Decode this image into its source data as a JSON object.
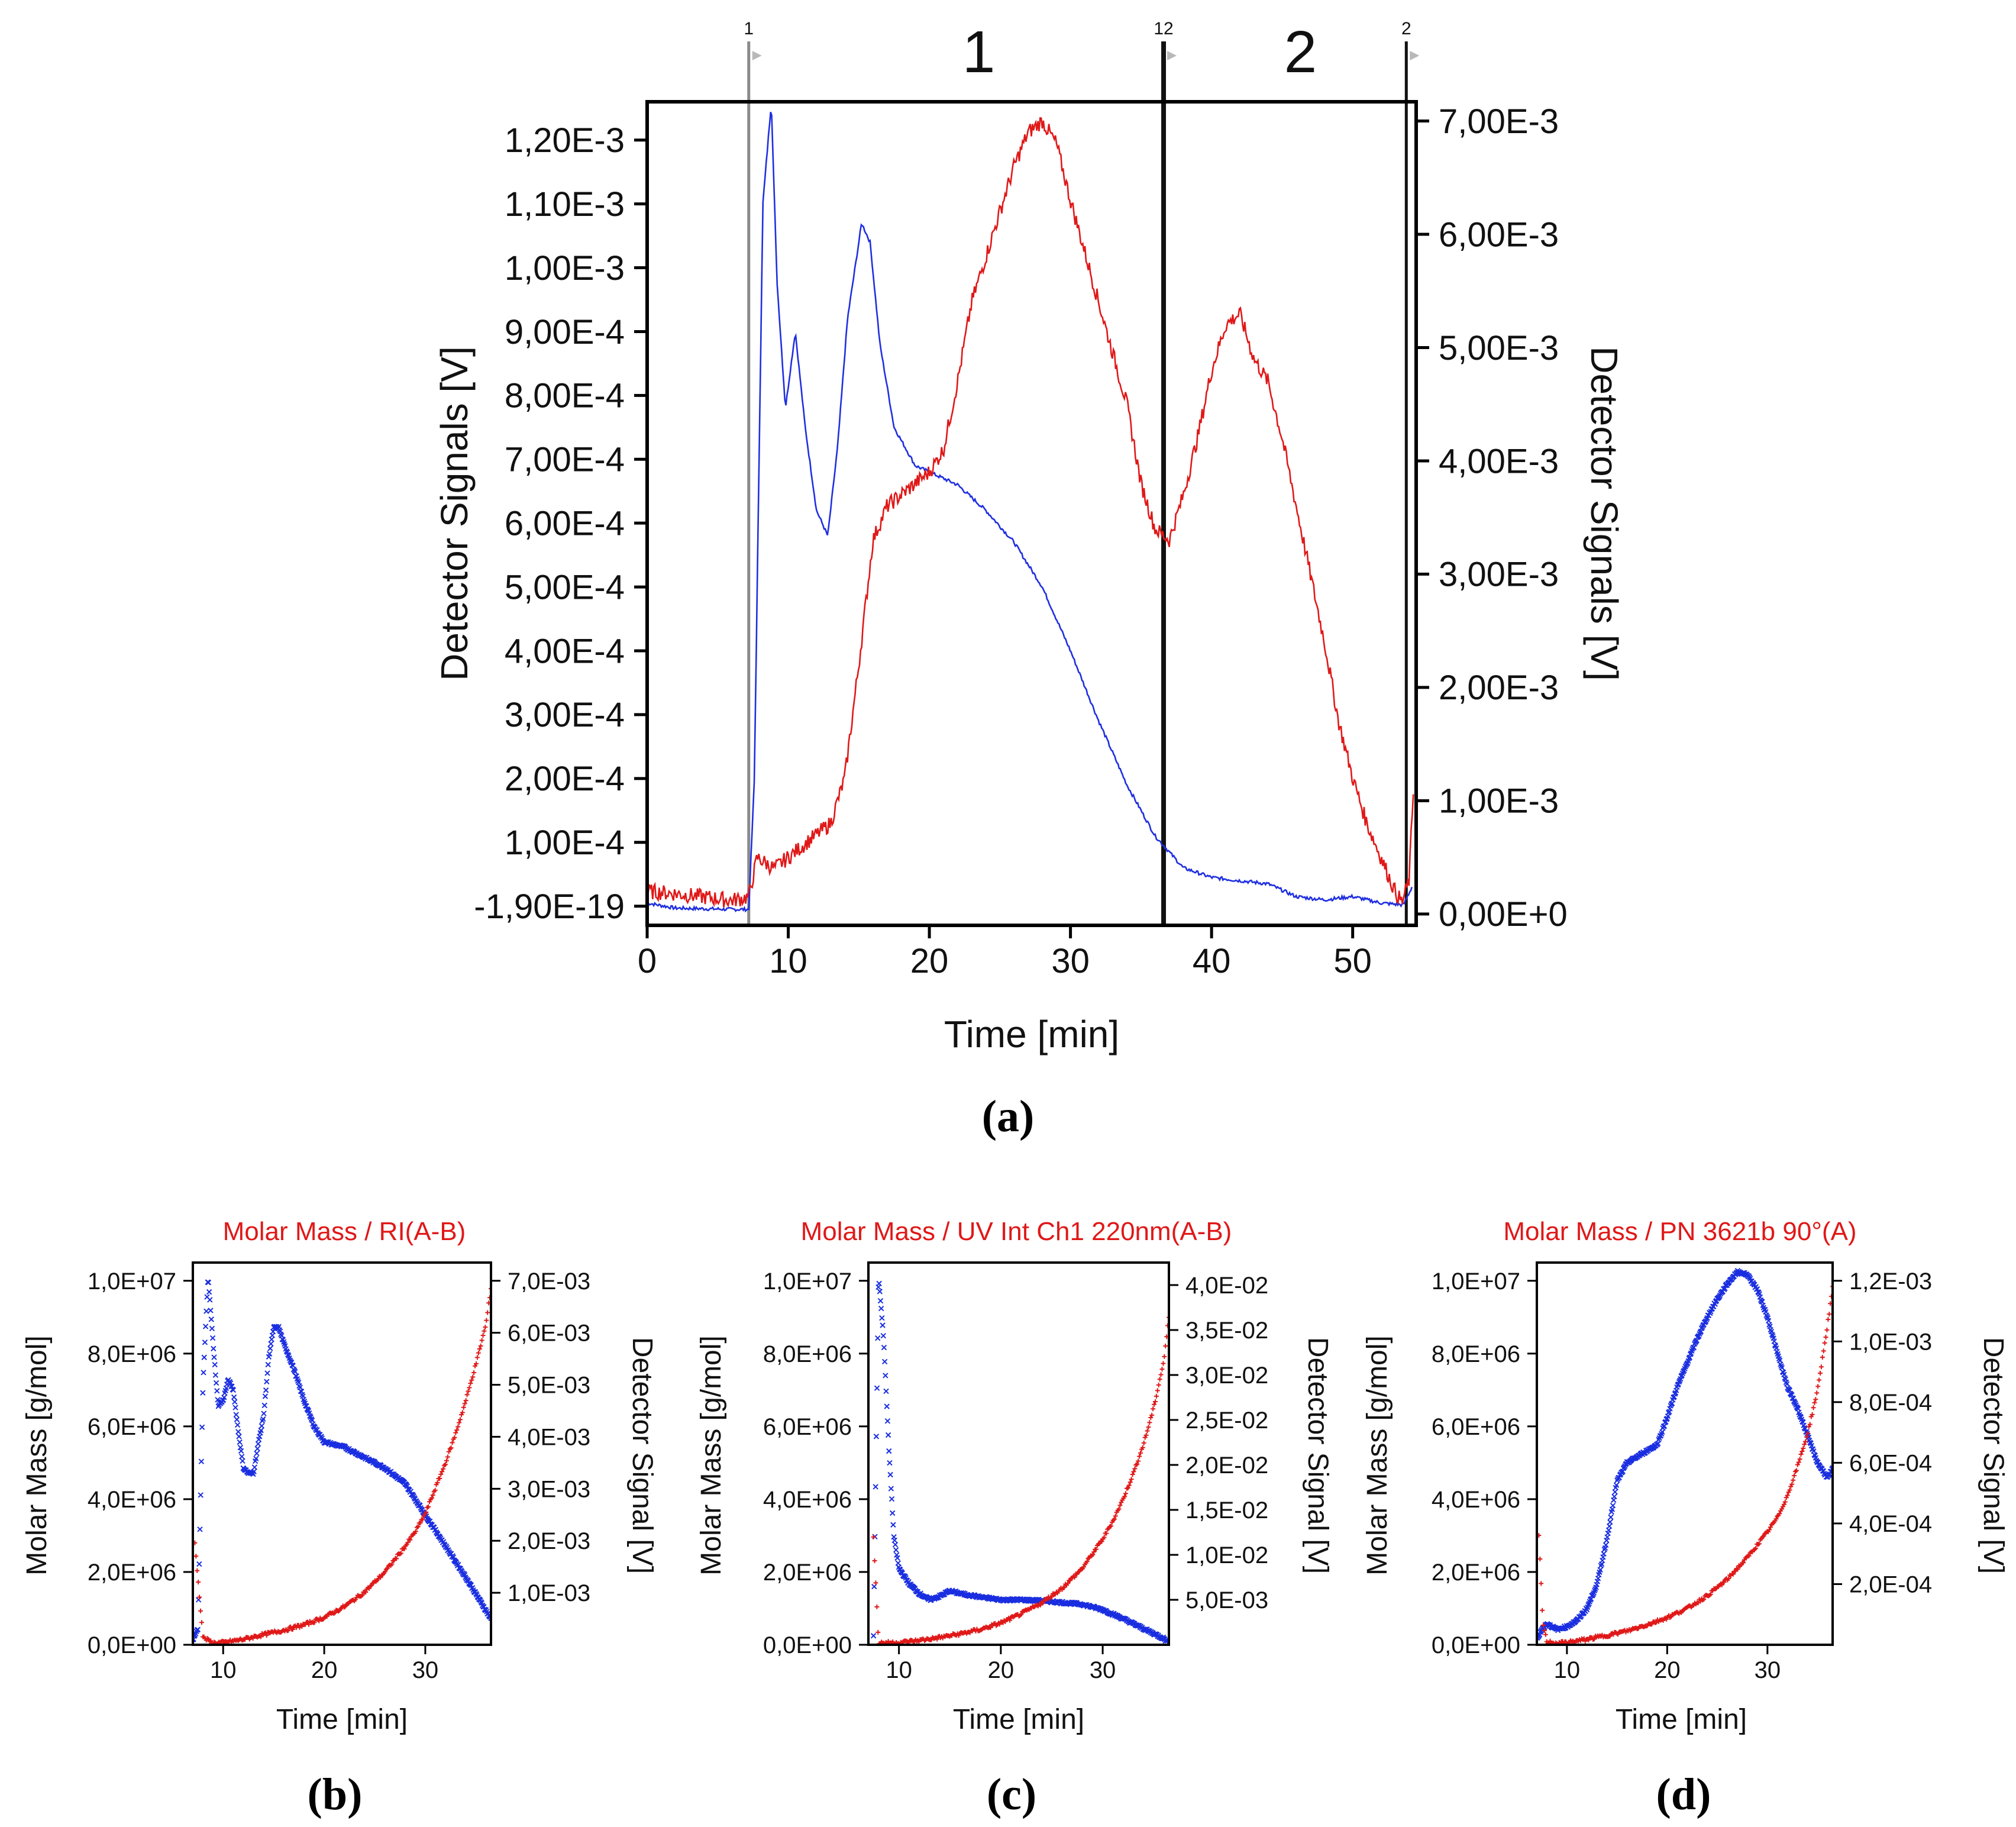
{
  "chart_data": [
    {
      "panel": "a",
      "panel_label": "(a)",
      "type": "line",
      "title": "",
      "xlabel": "Time [min]",
      "ylabel_left": "Detector Signals [V]",
      "ylabel_right": "Detector Signals [V]",
      "xlim": [
        0,
        54.5
      ],
      "ylim_left": [
        -3e-05,
        0.00126
      ],
      "ylim_right": [
        -0.0001,
        0.00717
      ],
      "x_ticks": [
        "0",
        "10",
        "20",
        "30",
        "40",
        "50"
      ],
      "y_left_ticks": [
        "-1,90E-19",
        "1,00E-4",
        "2,00E-4",
        "3,00E-4",
        "4,00E-4",
        "5,00E-4",
        "6,00E-4",
        "7,00E-4",
        "8,00E-4",
        "9,00E-4",
        "1,00E-3",
        "1,10E-3",
        "1,20E-3"
      ],
      "y_right_ticks": [
        "0,00E+0",
        "1,00E-3",
        "2,00E-3",
        "3,00E-3",
        "4,00E-3",
        "5,00E-3",
        "6,00E-3",
        "7,00E-3"
      ],
      "markers": [
        {
          "x": 7.2,
          "top_label": "1"
        },
        {
          "x": 36.6,
          "top_label": "12"
        },
        {
          "x": 53.8,
          "top_label": "2"
        }
      ],
      "region_labels": [
        {
          "x": 23.5,
          "label": "1"
        },
        {
          "x": 46.3,
          "label": "2"
        }
      ],
      "series": [
        {
          "name": "blue signal",
          "axis": "left",
          "color": "#1f2fe0",
          "x": [
            0,
            2,
            4,
            6,
            7.2,
            7.6,
            8.2,
            8.8,
            9.2,
            9.8,
            10.5,
            11.2,
            12,
            12.8,
            13.5,
            14.2,
            15.2,
            15.8,
            16.5,
            17.5,
            19,
            20,
            22,
            24,
            26,
            28,
            30,
            32,
            34,
            36,
            38,
            40,
            42,
            44,
            46,
            48,
            50,
            52,
            53.6,
            54.2
          ],
          "y": [
            5e-06,
            -3e-06,
            -4e-06,
            -5e-06,
            -5e-06,
            0.0002,
            0.0011,
            0.00126,
            0.00098,
            0.00078,
            0.0009,
            0.00075,
            0.00062,
            0.00058,
            0.00072,
            0.00092,
            0.00107,
            0.00104,
            0.00088,
            0.00075,
            0.00069,
            0.00068,
            0.00066,
            0.00062,
            0.00057,
            0.0005,
            0.0004,
            0.00029,
            0.00019,
            0.00011,
            6e-05,
            4.5e-05,
            4e-05,
            3.5e-05,
            1.5e-05,
            1e-05,
            1.5e-05,
            5e-06,
            2e-06,
            3e-05
          ]
        },
        {
          "name": "red signal",
          "axis": "right",
          "color": "#e01818",
          "x": [
            0,
            2,
            4,
            6,
            7.2,
            7.8,
            9,
            11,
            13,
            14,
            15,
            16,
            17,
            18,
            19,
            20,
            21,
            22,
            23,
            24,
            25,
            26,
            27,
            28,
            29,
            30,
            32,
            34,
            35,
            36,
            37,
            38,
            39,
            40,
            41,
            42,
            43,
            44,
            45,
            46,
            47,
            48,
            49,
            50,
            51,
            52,
            53,
            53.5,
            54,
            54.3
          ],
          "y": [
            0.0002,
            0.00018,
            0.00015,
            0.00012,
            0.00015,
            0.0005,
            0.0004,
            0.0006,
            0.0008,
            0.0012,
            0.0022,
            0.0033,
            0.0036,
            0.0037,
            0.0038,
            0.0039,
            0.0041,
            0.0047,
            0.0054,
            0.0058,
            0.0062,
            0.0066,
            0.0069,
            0.007,
            0.0068,
            0.0063,
            0.0054,
            0.0045,
            0.0038,
            0.0034,
            0.0033,
            0.0037,
            0.0042,
            0.0048,
            0.0052,
            0.0053,
            0.0049,
            0.0047,
            0.0042,
            0.0036,
            0.003,
            0.0024,
            0.0017,
            0.0012,
            0.0008,
            0.0005,
            0.0002,
            0.0001,
            0.0003,
            0.0011
          ]
        }
      ]
    },
    {
      "panel": "b",
      "panel_label": "(b)",
      "type": "scatter",
      "title": "Molar Mass / RI(A-B)",
      "xlabel": "Time [min]",
      "ylabel_left": "Molar Mass [g/mol]",
      "ylabel_right": "Detector Signal [V]",
      "xlim": [
        7,
        36.5
      ],
      "ylim_left": [
        0,
        10500000
      ],
      "ylim_right": [
        0,
        0.00735
      ],
      "x_ticks": [
        "10",
        "20",
        "30"
      ],
      "y_left_ticks": [
        "0,0E+00",
        "2,0E+06",
        "4,0E+06",
        "6,0E+06",
        "8,0E+06",
        "1,0E+07"
      ],
      "y_right_ticks": [
        "1,0E-03",
        "2,0E-03",
        "3,0E-03",
        "4,0E-03",
        "5,0E-03",
        "6,0E-03",
        "7,0E-03"
      ],
      "series": [
        {
          "name": "Detector signal",
          "axis": "right",
          "color": "#1a2ee0",
          "marker": "x",
          "x": [
            7,
            7.5,
            8,
            8.5,
            9,
            9.5,
            10,
            10.5,
            11,
            11.5,
            12,
            12.5,
            13,
            13.5,
            14,
            14.5,
            15,
            15.5,
            16,
            17,
            18,
            19,
            20,
            22,
            24,
            26,
            28,
            30,
            32,
            34,
            36.5
          ],
          "y": [
            0.0001,
            0.0003,
            0.005,
            0.0071,
            0.0058,
            0.0046,
            0.0047,
            0.0051,
            0.0049,
            0.0041,
            0.0034,
            0.0033,
            0.0033,
            0.0039,
            0.0044,
            0.0055,
            0.0061,
            0.0061,
            0.0058,
            0.0053,
            0.0047,
            0.0042,
            0.0039,
            0.0038,
            0.0036,
            0.0034,
            0.0031,
            0.0025,
            0.0019,
            0.0013,
            0.0005
          ]
        },
        {
          "name": "Molar mass",
          "axis": "left",
          "color": "#e01818",
          "marker": "+",
          "x": [
            7.2,
            8,
            9,
            10,
            12,
            14,
            16,
            18,
            20,
            22,
            24,
            26,
            28,
            29,
            30,
            31,
            32,
            33,
            34,
            35,
            36,
            36.5
          ],
          "y": [
            2800000,
            200000,
            50000,
            60000,
            150000,
            280000,
            400000,
            550000,
            750000,
            1050000,
            1450000,
            2000000,
            2700000,
            3100000,
            3600000,
            4300000,
            5000000,
            5800000,
            6700000,
            7700000,
            8800000,
            9800000
          ]
        }
      ]
    },
    {
      "panel": "c",
      "panel_label": "(c)",
      "type": "scatter",
      "title": "Molar Mass / UV Int Ch1 220nm(A-B)",
      "xlabel": "Time [min]",
      "ylabel_left": "Molar Mass [g/mol]",
      "ylabel_right": "Detector Signal [V]",
      "xlim": [
        7,
        36.5
      ],
      "ylim_left": [
        0,
        10500000
      ],
      "ylim_right": [
        0,
        0.0425
      ],
      "x_ticks": [
        "10",
        "20",
        "30"
      ],
      "y_left_ticks": [
        "0,0E+00",
        "2,0E+06",
        "4,0E+06",
        "6,0E+06",
        "8,0E+06",
        "1,0E+07"
      ],
      "y_right_ticks": [
        "5,0E-03",
        "1,0E-02",
        "1,5E-02",
        "2,0E-02",
        "2,5E-02",
        "3,0E-02",
        "3,5E-02",
        "4,0E-02"
      ],
      "series": [
        {
          "name": "Detector signal",
          "axis": "right",
          "color": "#1a2ee0",
          "marker": "x",
          "x": [
            7.5,
            8,
            8.5,
            9,
            9.5,
            10,
            11,
            12,
            13,
            14,
            15,
            16,
            18,
            20,
            22,
            24,
            26,
            28,
            30,
            32,
            34,
            36,
            36.5
          ],
          "y": [
            0.001,
            0.041,
            0.034,
            0.022,
            0.012,
            0.0085,
            0.0068,
            0.0057,
            0.005,
            0.0054,
            0.006,
            0.0057,
            0.0053,
            0.005,
            0.005,
            0.0049,
            0.0047,
            0.0045,
            0.0039,
            0.0029,
            0.0018,
            0.0007,
            0.0002
          ]
        },
        {
          "name": "Molar mass",
          "axis": "left",
          "color": "#e01818",
          "marker": "+",
          "x": [
            7.5,
            8,
            10,
            12,
            14,
            16,
            18,
            20,
            22,
            24,
            26,
            28,
            30,
            31,
            32,
            33,
            34,
            35,
            36,
            36.5
          ],
          "y": [
            3000000,
            50000,
            60000,
            120000,
            200000,
            300000,
            420000,
            600000,
            850000,
            1150000,
            1550000,
            2100000,
            2900000,
            3400000,
            4000000,
            4700000,
            5500000,
            6500000,
            7800000,
            9000000
          ]
        }
      ]
    },
    {
      "panel": "d",
      "panel_label": "(d)",
      "type": "scatter",
      "title": "Molar Mass / PN 3621b 90°(A)",
      "xlabel": "Time [min]",
      "ylabel_left": "Molar Mass [g/mol]",
      "ylabel_right": "Detector Signal [V]",
      "xlim": [
        7,
        36.5
      ],
      "ylim_left": [
        0,
        10500000
      ],
      "ylim_right": [
        0,
        0.00126
      ],
      "x_ticks": [
        "10",
        "20",
        "30"
      ],
      "y_left_ticks": [
        "0,0E+00",
        "2,0E+06",
        "4,0E+06",
        "6,0E+06",
        "8,0E+06",
        "1,0E+07"
      ],
      "y_right_ticks": [
        "2,0E-04",
        "4,0E-04",
        "6,0E-04",
        "8,0E-04",
        "1,0E-03",
        "1,2E-03"
      ],
      "series": [
        {
          "name": "Detector signal",
          "axis": "right",
          "color": "#1a2ee0",
          "marker": "x",
          "x": [
            7,
            7.5,
            8,
            8.5,
            9,
            10,
            11,
            12,
            13,
            14,
            15,
            16,
            17,
            18,
            19,
            20,
            21,
            22,
            23,
            24,
            25,
            26,
            27,
            28,
            29,
            30,
            31,
            32,
            33,
            34,
            35,
            36,
            36.5
          ],
          "y": [
            2e-05,
            5e-05,
            7e-05,
            6e-05,
            5e-05,
            6e-05,
            8e-05,
            0.00012,
            0.0002,
            0.00035,
            0.00054,
            0.0006,
            0.00062,
            0.00064,
            0.00066,
            0.00075,
            0.00085,
            0.00093,
            0.00101,
            0.00108,
            0.00114,
            0.00119,
            0.00123,
            0.00122,
            0.00117,
            0.00108,
            0.00096,
            0.00085,
            0.00078,
            0.00069,
            0.0006,
            0.00055,
            0.00058
          ]
        },
        {
          "name": "Molar mass",
          "axis": "left",
          "color": "#e01818",
          "marker": "+",
          "x": [
            7.2,
            7.6,
            8,
            9,
            10,
            12,
            14,
            16,
            18,
            20,
            22,
            24,
            26,
            28,
            30,
            31,
            32,
            33,
            34,
            35,
            36,
            36.5
          ],
          "y": [
            3000000,
            600000,
            80000,
            40000,
            60000,
            150000,
            260000,
            380000,
            550000,
            750000,
            1000000,
            1350000,
            1800000,
            2400000,
            3100000,
            3500000,
            4100000,
            4900000,
            5800000,
            7000000,
            8800000,
            9800000
          ]
        }
      ]
    }
  ]
}
